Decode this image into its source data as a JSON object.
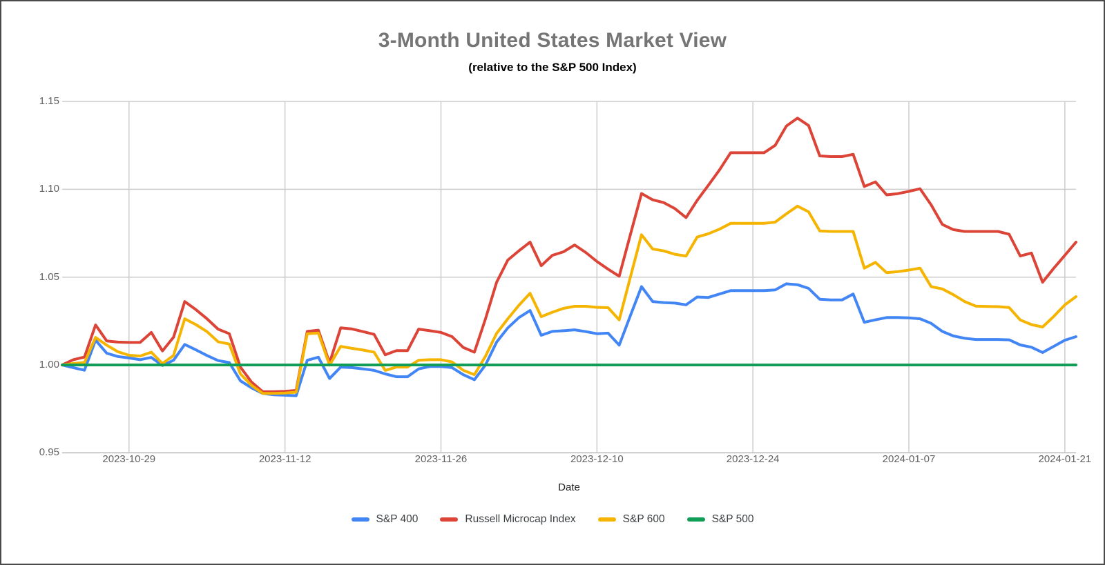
{
  "chart_data": {
    "type": "line",
    "title": "3-Month United States Market View",
    "subtitle": "(relative to the S&P 500 Index)",
    "xlabel": "Date",
    "ylabel": "",
    "ylim": [
      0.95,
      1.15
    ],
    "yticks": [
      "0.95",
      "1.00",
      "1.05",
      "1.10",
      "1.15"
    ],
    "xticks": [
      "2023-10-29",
      "2023-11-12",
      "2023-11-26",
      "2023-12-10",
      "2023-12-24",
      "2024-01-07",
      "2024-01-21"
    ],
    "grid": true,
    "legend_position": "bottom",
    "styles": {
      "grid_color": "#cccccc",
      "baseline_color": "#b7b7b7",
      "axis_label_color": "#616161",
      "title_color": "#757575",
      "subtitle_color": "#000000",
      "legend_text_color": "#3c4043",
      "background": "#ffffff",
      "border_color": "#4a4a4a"
    },
    "x": [
      "2023-10-23",
      "2023-10-24",
      "2023-10-25",
      "2023-10-26",
      "2023-10-27",
      "2023-10-28",
      "2023-10-29",
      "2023-10-30",
      "2023-10-31",
      "2023-11-01",
      "2023-11-02",
      "2023-11-03",
      "2023-11-04",
      "2023-11-05",
      "2023-11-06",
      "2023-11-07",
      "2023-11-08",
      "2023-11-09",
      "2023-11-10",
      "2023-11-11",
      "2023-11-12",
      "2023-11-13",
      "2023-11-14",
      "2023-11-15",
      "2023-11-16",
      "2023-11-17",
      "2023-11-18",
      "2023-11-19",
      "2023-11-20",
      "2023-11-21",
      "2023-11-22",
      "2023-11-23",
      "2023-11-24",
      "2023-11-25",
      "2023-11-26",
      "2023-11-27",
      "2023-11-28",
      "2023-11-29",
      "2023-11-30",
      "2023-12-01",
      "2023-12-02",
      "2023-12-03",
      "2023-12-04",
      "2023-12-05",
      "2023-12-06",
      "2023-12-07",
      "2023-12-08",
      "2023-12-09",
      "2023-12-10",
      "2023-12-11",
      "2023-12-12",
      "2023-12-13",
      "2023-12-14",
      "2023-12-15",
      "2023-12-16",
      "2023-12-17",
      "2023-12-18",
      "2023-12-19",
      "2023-12-20",
      "2023-12-21",
      "2023-12-22",
      "2023-12-23",
      "2023-12-24",
      "2023-12-25",
      "2023-12-26",
      "2023-12-27",
      "2023-12-28",
      "2023-12-29",
      "2023-12-30",
      "2023-12-31",
      "2024-01-01",
      "2024-01-02",
      "2024-01-03",
      "2024-01-04",
      "2024-01-05",
      "2024-01-06",
      "2024-01-07",
      "2024-01-08",
      "2024-01-09",
      "2024-01-10",
      "2024-01-11",
      "2024-01-12",
      "2024-01-13",
      "2024-01-14",
      "2024-01-15",
      "2024-01-16",
      "2024-01-17",
      "2024-01-18",
      "2024-01-19",
      "2024-01-20",
      "2024-01-21",
      "2024-01-22"
    ],
    "series": [
      {
        "name": "S&P 400",
        "id": "sp400",
        "color": "#4285F4",
        "values": [
          1.0,
          0.9985,
          0.997,
          1.0141,
          1.0067,
          1.0048,
          1.004,
          1.003,
          1.0043,
          0.9997,
          1.0027,
          1.0117,
          1.0086,
          1.0054,
          1.0025,
          1.0014,
          0.991,
          0.987,
          0.9838,
          0.983,
          0.9828,
          0.9825,
          1.0027,
          1.0044,
          0.9923,
          0.9988,
          0.9985,
          0.9978,
          0.9969,
          0.9949,
          0.9933,
          0.9933,
          0.9978,
          0.9991,
          0.9991,
          0.9985,
          0.9945,
          0.9916,
          1.0,
          1.013,
          1.0211,
          1.027,
          1.031,
          1.0169,
          1.0191,
          1.0195,
          1.02,
          1.019,
          1.0178,
          1.0181,
          1.0113,
          1.028,
          1.0446,
          1.0361,
          1.0355,
          1.0352,
          1.0342,
          1.0387,
          1.0384,
          1.0404,
          1.0423,
          1.0423,
          1.0423,
          1.0423,
          1.0427,
          1.0462,
          1.0457,
          1.0436,
          1.0374,
          1.037,
          1.037,
          1.0404,
          1.0243,
          1.0257,
          1.027,
          1.027,
          1.0268,
          1.0263,
          1.0237,
          1.0191,
          1.0165,
          1.0152,
          1.0145,
          1.0145,
          1.0145,
          1.0143,
          1.0114,
          1.0101,
          1.0071,
          1.0106,
          1.0141,
          1.0161
        ]
      },
      {
        "name": "Russell Microcap Index",
        "id": "russell-microcap-index",
        "color": "#DB4437",
        "values": [
          1.0,
          1.003,
          1.0045,
          1.0228,
          1.0137,
          1.013,
          1.0128,
          1.0128,
          1.0185,
          1.008,
          1.0158,
          1.0361,
          1.0315,
          1.0263,
          1.0204,
          1.0178,
          0.9988,
          0.9903,
          0.9848,
          0.9848,
          0.985,
          0.9855,
          1.0191,
          1.0198,
          1.0012,
          1.0211,
          1.0205,
          1.019,
          1.0174,
          1.0058,
          1.0082,
          1.0082,
          1.0204,
          1.0195,
          1.0185,
          1.0161,
          1.01,
          1.0073,
          1.0263,
          1.0471,
          1.0597,
          1.065,
          1.0699,
          1.0565,
          1.0624,
          1.0644,
          1.0683,
          1.064,
          1.0589,
          1.0545,
          1.0505,
          1.0741,
          1.0976,
          1.094,
          1.0924,
          1.089,
          1.0839,
          1.0937,
          1.1022,
          1.111,
          1.1208,
          1.1208,
          1.1208,
          1.1208,
          1.125,
          1.136,
          1.1405,
          1.1363,
          1.119,
          1.1186,
          1.1186,
          1.1199,
          1.1016,
          1.1042,
          1.0968,
          1.0975,
          1.0988,
          1.1003,
          1.0911,
          1.08,
          1.077,
          1.076,
          1.076,
          1.076,
          1.076,
          1.0744,
          1.062,
          1.0637,
          1.0471,
          1.055,
          1.0624,
          1.0699
        ]
      },
      {
        "name": "S&P 600",
        "id": "sp600",
        "color": "#F4B400",
        "values": [
          1.0,
          1.0008,
          1.0014,
          1.0157,
          1.0113,
          1.0075,
          1.0055,
          1.0051,
          1.0073,
          1.0008,
          1.0054,
          1.0263,
          1.023,
          1.019,
          1.0132,
          1.0119,
          0.9949,
          0.9884,
          0.9838,
          0.9838,
          0.984,
          0.9845,
          1.0178,
          1.0182,
          0.9999,
          1.0106,
          1.0095,
          1.0085,
          1.0073,
          0.9969,
          0.9988,
          0.9988,
          1.0027,
          1.003,
          1.003,
          1.0017,
          0.997,
          0.9945,
          1.005,
          1.018,
          1.0263,
          1.034,
          1.0408,
          1.0275,
          1.03,
          1.0322,
          1.0334,
          1.0334,
          1.0328,
          1.0326,
          1.0257,
          1.0499,
          1.0741,
          1.066,
          1.0649,
          1.063,
          1.062,
          1.0728,
          1.0747,
          1.0773,
          1.0806,
          1.0806,
          1.0806,
          1.0806,
          1.0813,
          1.086,
          1.0904,
          1.0872,
          1.0763,
          1.076,
          1.076,
          1.076,
          1.0551,
          1.0584,
          1.0525,
          1.0531,
          1.054,
          1.0551,
          1.0446,
          1.0433,
          1.04,
          1.0361,
          1.0335,
          1.0333,
          1.0332,
          1.0327,
          1.0256,
          1.023,
          1.0216,
          1.0276,
          1.0342,
          1.0389
        ]
      },
      {
        "name": "S&P 500",
        "id": "sp500",
        "color": "#0F9D58",
        "values": [
          1.0,
          1.0,
          1.0,
          1.0,
          1.0,
          1.0,
          1.0,
          1.0,
          1.0,
          1.0,
          1.0,
          1.0,
          1.0,
          1.0,
          1.0,
          1.0,
          1.0,
          1.0,
          1.0,
          1.0,
          1.0,
          1.0,
          1.0,
          1.0,
          1.0,
          1.0,
          1.0,
          1.0,
          1.0,
          1.0,
          1.0,
          1.0,
          1.0,
          1.0,
          1.0,
          1.0,
          1.0,
          1.0,
          1.0,
          1.0,
          1.0,
          1.0,
          1.0,
          1.0,
          1.0,
          1.0,
          1.0,
          1.0,
          1.0,
          1.0,
          1.0,
          1.0,
          1.0,
          1.0,
          1.0,
          1.0,
          1.0,
          1.0,
          1.0,
          1.0,
          1.0,
          1.0,
          1.0,
          1.0,
          1.0,
          1.0,
          1.0,
          1.0,
          1.0,
          1.0,
          1.0,
          1.0,
          1.0,
          1.0,
          1.0,
          1.0,
          1.0,
          1.0,
          1.0,
          1.0,
          1.0,
          1.0,
          1.0,
          1.0,
          1.0,
          1.0,
          1.0,
          1.0,
          1.0,
          1.0,
          1.0,
          1.0
        ]
      }
    ]
  }
}
